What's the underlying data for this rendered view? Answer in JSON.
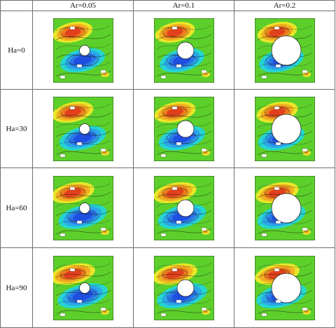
{
  "table": {
    "columns": [
      "",
      "Ar=0.05",
      "Ar=0.1",
      "Ar=0.2"
    ],
    "rows": [
      {
        "label": "Ha=0",
        "ar": [
          0.05,
          0.1,
          0.2
        ]
      },
      {
        "label": "Ha=30",
        "ar": [
          0.05,
          0.1,
          0.2
        ]
      },
      {
        "label": "Ha=60",
        "ar": [
          0.05,
          0.1,
          0.2
        ]
      },
      {
        "label": "Ha=90",
        "ar": [
          0.05,
          0.1,
          0.2
        ]
      }
    ]
  },
  "colors": {
    "background_field": "#5ccf2a",
    "positive_core": "#e2401c",
    "negative_core": "#1f4fe0",
    "obstacle": "#ffffff"
  }
}
